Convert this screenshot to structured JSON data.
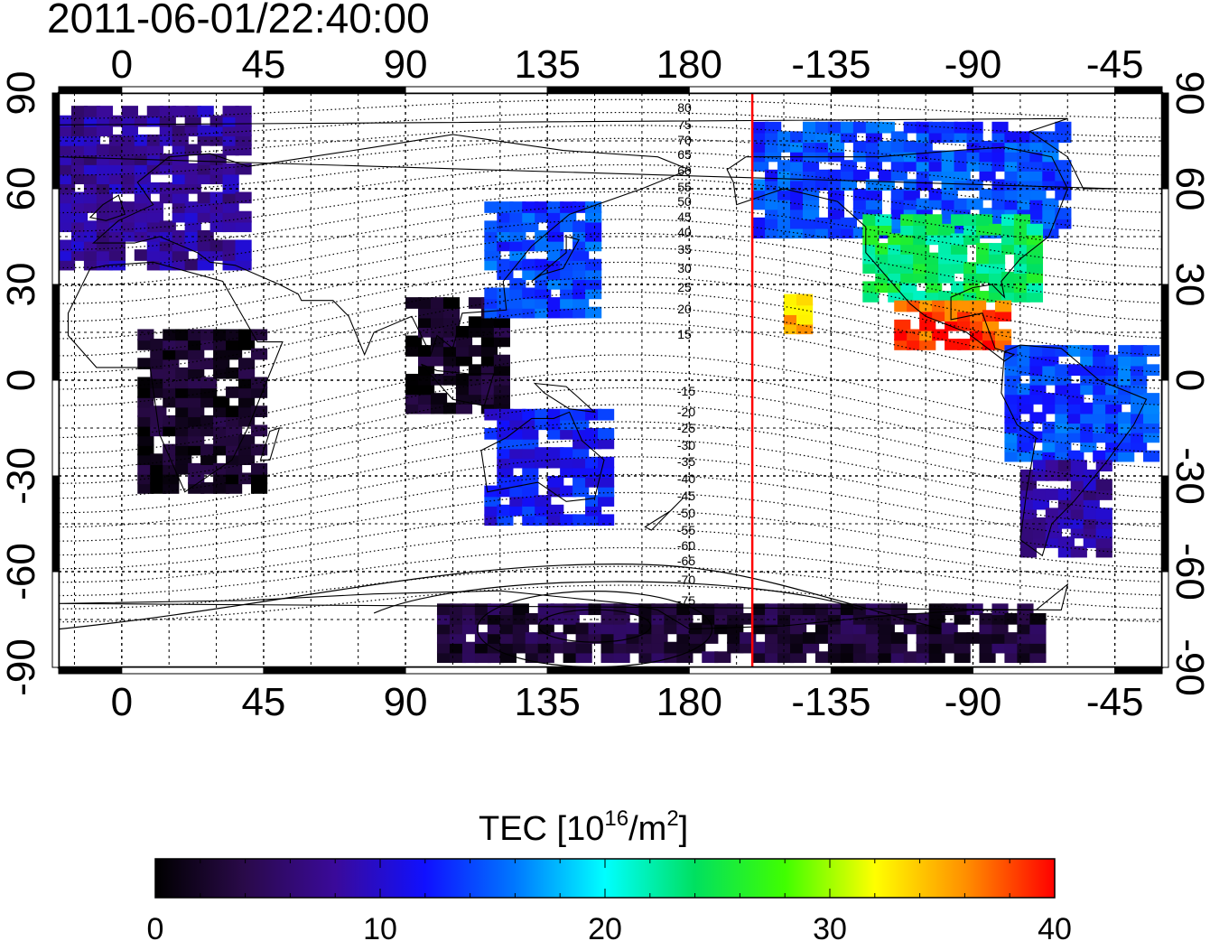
{
  "timestamp": "2011-06-01/22:40:00",
  "map": {
    "lon_ticks_top": [
      "0",
      "45",
      "90",
      "135",
      "180",
      "-135",
      "-90",
      "-45"
    ],
    "lon_ticks_bottom": [
      "0",
      "45",
      "90",
      "135",
      "180",
      "-135",
      "-90",
      "-45"
    ],
    "lat_ticks_left": [
      "90",
      "60",
      "30",
      "0",
      "-30",
      "-60",
      "-90"
    ],
    "lat_ticks_right": [
      "90",
      "60",
      "30",
      "0",
      "-30",
      "-60",
      "-90"
    ],
    "lon_values": [
      0,
      45,
      90,
      135,
      180,
      -135,
      -90,
      -45
    ],
    "lat_values": [
      90,
      60,
      30,
      0,
      -30,
      -60,
      -90
    ],
    "lon_range": [
      -20,
      330
    ],
    "lat_range": [
      -90,
      90
    ],
    "terminator_longitude": -160,
    "terminator_color": "#ff0000",
    "contour_labels_north": [
      "80",
      "75",
      "70",
      "65",
      "60",
      "55",
      "50",
      "45",
      "40",
      "35",
      "30",
      "25",
      "20",
      "15"
    ],
    "contour_labels_south": [
      "-15",
      "-20",
      "-25",
      "-30",
      "-35",
      "-40",
      "-45",
      "-50",
      "-55",
      "-60",
      "-65",
      "-70",
      "-75"
    ]
  },
  "colorbar": {
    "title_main": "TEC  [10",
    "title_sup": "16",
    "title_mid": "/m",
    "title_sup2": "2",
    "title_end": "]",
    "tick_labels": [
      "0",
      "10",
      "20",
      "30",
      "40"
    ],
    "tick_values": [
      0,
      10,
      20,
      30,
      40
    ],
    "range": [
      0,
      40
    ],
    "colormap": [
      "#000000",
      "#2a0a4a",
      "#3a0a9a",
      "#1010ff",
      "#0078ff",
      "#00ffff",
      "#00e060",
      "#40ff00",
      "#ffff00",
      "#ff9000",
      "#ff0000"
    ]
  },
  "chart_data": {
    "type": "heatmap",
    "title": "2011-06-01/22:40:00",
    "colorbar_label": "TEC [10^16/m^2]",
    "x_ticks": [
      "0",
      "45",
      "90",
      "135",
      "180",
      "-135",
      "-90",
      "-45"
    ],
    "y_ticks": [
      "90",
      "60",
      "30",
      "0",
      "-30",
      "-60",
      "-90"
    ],
    "value_range": [
      0,
      40
    ],
    "regions": [
      {
        "lon": [
          -20,
          40
        ],
        "lat": [
          35,
          85
        ],
        "tec": 8
      },
      {
        "lon": [
          5,
          45
        ],
        "lat": [
          -35,
          15
        ],
        "tec": 2
      },
      {
        "lon": [
          90,
          120
        ],
        "lat": [
          -10,
          25
        ],
        "tec": 2
      },
      {
        "lon": [
          115,
          150
        ],
        "lat": [
          20,
          55
        ],
        "tec": 14
      },
      {
        "lon": [
          115,
          155
        ],
        "lat": [
          -45,
          -10
        ],
        "tec": 12
      },
      {
        "lon": [
          -160,
          -60
        ],
        "lat": [
          45,
          80
        ],
        "tec": 14
      },
      {
        "lon": [
          -125,
          -70
        ],
        "lat": [
          25,
          50
        ],
        "tec": 24
      },
      {
        "lon": [
          -115,
          -80
        ],
        "lat": [
          10,
          25
        ],
        "tec": 38
      },
      {
        "lon": [
          -80,
          -35
        ],
        "lat": [
          -25,
          10
        ],
        "tec": 14
      },
      {
        "lon": [
          -75,
          -50
        ],
        "lat": [
          -55,
          -25
        ],
        "tec": 8
      },
      {
        "lon": [
          100,
          290
        ],
        "lat": [
          -88,
          -70
        ],
        "tec": 3
      },
      {
        "lon": [
          -150,
          -145
        ],
        "lat": [
          15,
          25
        ],
        "tec": 34
      }
    ]
  }
}
